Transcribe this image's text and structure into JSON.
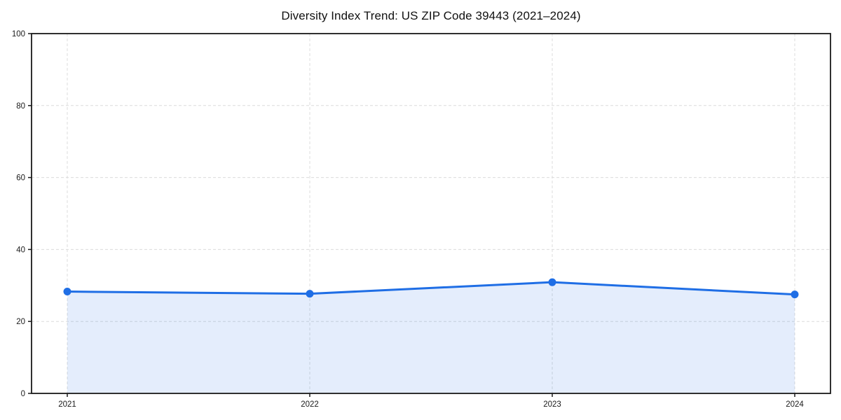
{
  "chart_data": {
    "type": "area",
    "title": "Diversity Index Trend: US ZIP Code 39443 (2021–2024)",
    "categories": [
      "2021",
      "2022",
      "2023",
      "2024"
    ],
    "values": [
      28.3,
      27.7,
      30.9,
      27.5
    ],
    "xlabel": "",
    "ylabel": "",
    "ylim": [
      0,
      100
    ],
    "yticks": [
      0,
      20,
      40,
      60,
      80,
      100
    ],
    "grid": true,
    "legend": false,
    "marker": "circle",
    "colors": {
      "line": "#1f6ee5",
      "fill": "#1f6ee5",
      "fill_opacity": 0.12,
      "grid": "#dcdcdc",
      "axis": "#1a1a1a",
      "tick_label": "#1a1a1a",
      "background": "#ffffff"
    }
  }
}
